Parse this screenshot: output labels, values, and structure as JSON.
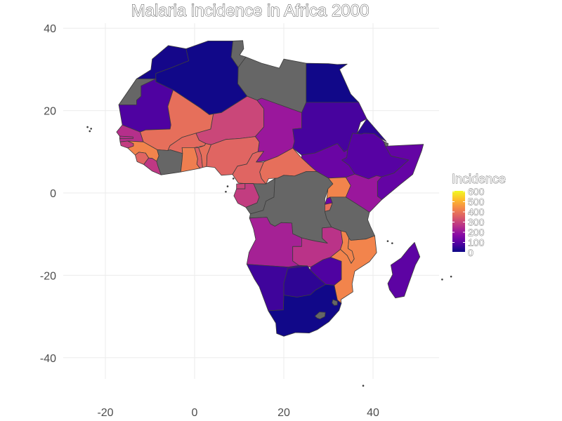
{
  "title": "Malaria incidence in Africa 2000",
  "chart_data": {
    "type": "choropleth",
    "title": "Malaria incidence in Africa 2000",
    "x_ticks": [
      "-20",
      "0",
      "20",
      "40"
    ],
    "x_tick_values": [
      -20,
      0,
      20,
      40
    ],
    "y_ticks": [
      "40",
      "20",
      "0",
      "-20",
      "-40"
    ],
    "y_tick_values": [
      40,
      20,
      0,
      -20,
      -40
    ],
    "xlim": [
      -27,
      55
    ],
    "ylim": [
      -47,
      43
    ],
    "grid": true,
    "legend": {
      "title": "Incidence",
      "position": "right",
      "labels": [
        "600",
        "500",
        "400",
        "300",
        "200",
        "100",
        "0"
      ],
      "values": [
        600,
        500,
        400,
        300,
        200,
        100,
        0
      ],
      "range": [
        0,
        600
      ]
    },
    "no_data_color": "#666666",
    "palette": [
      "#0d0887",
      "#5402a3",
      "#8b0aa5",
      "#b93289",
      "#db5c68",
      "#f48849",
      "#febd2a",
      "#f0f921"
    ],
    "countries": [
      {
        "name": "Morocco",
        "incidence": 10
      },
      {
        "name": "Algeria",
        "incidence": 5
      },
      {
        "name": "Western Sahara",
        "incidence": null
      },
      {
        "name": "Tunisia",
        "incidence": null
      },
      {
        "name": "Libya",
        "incidence": null
      },
      {
        "name": "Egypt",
        "incidence": 5
      },
      {
        "name": "Mauritania",
        "incidence": 80
      },
      {
        "name": "Mali",
        "incidence": 380
      },
      {
        "name": "Niger",
        "incidence": 300
      },
      {
        "name": "Chad",
        "incidence": 200
      },
      {
        "name": "Sudan",
        "incidence": 70
      },
      {
        "name": "Eritrea",
        "incidence": 40
      },
      {
        "name": "Ethiopia",
        "incidence": 90
      },
      {
        "name": "Djibouti",
        "incidence": null
      },
      {
        "name": "Somalia",
        "incidence": 110
      },
      {
        "name": "Senegal",
        "incidence": 250
      },
      {
        "name": "Gambia",
        "incidence": 250
      },
      {
        "name": "Guinea-Bissau",
        "incidence": 280
      },
      {
        "name": "Guinea",
        "incidence": 420
      },
      {
        "name": "Sierra Leone",
        "incidence": 360
      },
      {
        "name": "Liberia",
        "incidence": 270
      },
      {
        "name": "Cote d'Ivoire",
        "incidence": null
      },
      {
        "name": "Burkina Faso",
        "incidence": 370
      },
      {
        "name": "Ghana",
        "incidence": 410
      },
      {
        "name": "Togo",
        "incidence": 350
      },
      {
        "name": "Benin",
        "incidence": 380
      },
      {
        "name": "Nigeria",
        "incidence": 360
      },
      {
        "name": "Cameroon",
        "incidence": 360
      },
      {
        "name": "Central African Republic",
        "incidence": 380
      },
      {
        "name": "South Sudan",
        "incidence": 120
      },
      {
        "name": "Equatorial Guinea",
        "incidence": 300
      },
      {
        "name": "Gabon",
        "incidence": 280
      },
      {
        "name": "Congo",
        "incidence": null
      },
      {
        "name": "Democratic Republic of the Congo",
        "incidence": null
      },
      {
        "name": "Uganda",
        "incidence": 420
      },
      {
        "name": "Kenya",
        "incidence": 200
      },
      {
        "name": "Rwanda",
        "incidence": 120
      },
      {
        "name": "Burundi",
        "incidence": 380
      },
      {
        "name": "Tanzania",
        "incidence": null
      },
      {
        "name": "Angola",
        "incidence": 220
      },
      {
        "name": "Zambia",
        "incidence": 260
      },
      {
        "name": "Malawi",
        "incidence": 420
      },
      {
        "name": "Mozambique",
        "incidence": 420
      },
      {
        "name": "Zimbabwe",
        "incidence": 80
      },
      {
        "name": "Namibia",
        "incidence": 60
      },
      {
        "name": "Botswana",
        "incidence": 40
      },
      {
        "name": "South Africa",
        "incidence": 5
      },
      {
        "name": "Lesotho",
        "incidence": null
      },
      {
        "name": "Eswatini",
        "incidence": null
      },
      {
        "name": "Madagascar",
        "incidence": 100
      }
    ]
  }
}
